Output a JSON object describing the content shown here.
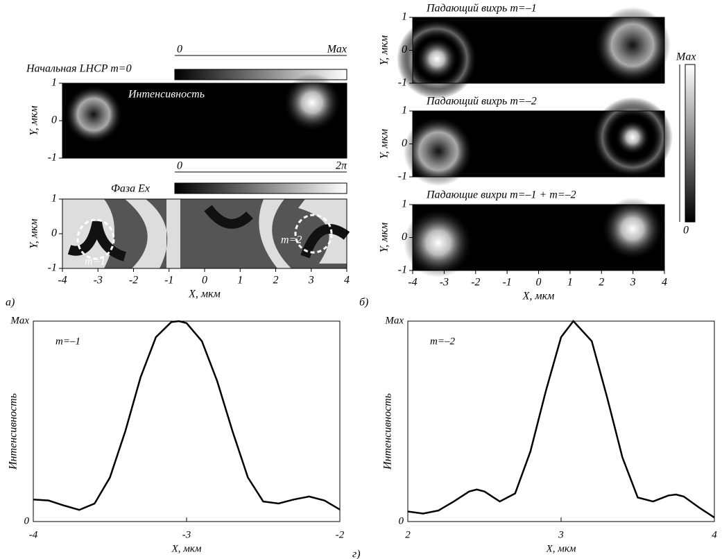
{
  "panel_a": {
    "colorbar1": {
      "min": "0",
      "max": "Max"
    },
    "title1": "Начальная LHCP m=0",
    "map1_label": "Интенсивность",
    "colorbar2": {
      "min": "0",
      "max": "2π"
    },
    "title2": "Фаза Ex",
    "vortex_labels": [
      "m=1",
      "m=2"
    ],
    "y_label": "Y, мкм",
    "y_ticks": [
      "1",
      "0",
      "-1"
    ],
    "x_ticks": [
      "-4",
      "-3",
      "-2",
      "-1",
      "0",
      "1",
      "2",
      "3",
      "4"
    ],
    "x_label": "X, мкм",
    "letter": "а)"
  },
  "panel_b": {
    "titles": [
      "Падающий вихрь m=–1",
      "Падающий вихрь m=–2",
      "Падающие вихри m=–1 + m=–2"
    ],
    "y_label": "Y, мкм",
    "y_ticks": [
      "1",
      "0",
      "-1"
    ],
    "x_ticks": [
      "-4",
      "-3",
      "-2",
      "-1",
      "0",
      "1",
      "2",
      "3",
      "4"
    ],
    "x_label": "X, мкм",
    "colorbar": {
      "max": "Max",
      "min": "0"
    },
    "letter": "б)"
  },
  "panel_g_letter": "г)",
  "chart_data": [
    {
      "type": "line",
      "annotation": "m=–1",
      "y_label": "Интенсивность",
      "x_label": "X, мкм",
      "color": "#000000",
      "x": [
        -4.0,
        -3.9,
        -3.8,
        -3.7,
        -3.6,
        -3.5,
        -3.4,
        -3.3,
        -3.2,
        -3.1,
        -3.05,
        -3.0,
        -2.9,
        -2.8,
        -2.7,
        -2.6,
        -2.5,
        -2.4,
        -2.3,
        -2.2,
        -2.1,
        -2.0
      ],
      "values": [
        0.11,
        0.105,
        0.08,
        0.058,
        0.09,
        0.22,
        0.45,
        0.72,
        0.92,
        0.995,
        1.0,
        0.99,
        0.9,
        0.7,
        0.45,
        0.22,
        0.1,
        0.09,
        0.11,
        0.125,
        0.105,
        0.06
      ],
      "xlim": [
        -4,
        -2
      ],
      "xticks": [
        -4,
        -3,
        -2
      ],
      "ylim": [
        0,
        1
      ],
      "yticks": [
        0,
        {
          "value": 1,
          "label": "Max"
        }
      ]
    },
    {
      "type": "line",
      "annotation": "m=–2",
      "y_label": "Интенсивность",
      "x_label": "X, мкм",
      "color": "#000000",
      "x": [
        2.0,
        2.1,
        2.2,
        2.3,
        2.4,
        2.45,
        2.5,
        2.6,
        2.7,
        2.8,
        2.9,
        3.0,
        3.08,
        3.2,
        3.3,
        3.4,
        3.5,
        3.6,
        3.7,
        3.75,
        3.8,
        3.9,
        4.0
      ],
      "values": [
        0.05,
        0.04,
        0.055,
        0.1,
        0.15,
        0.16,
        0.15,
        0.1,
        0.14,
        0.35,
        0.65,
        0.92,
        1.0,
        0.9,
        0.62,
        0.32,
        0.12,
        0.1,
        0.13,
        0.135,
        0.125,
        0.07,
        0.02
      ],
      "xlim": [
        2,
        4
      ],
      "xticks": [
        2,
        3,
        4
      ],
      "ylim": [
        0,
        1
      ],
      "yticks": [
        0,
        {
          "value": 1,
          "label": "Max"
        }
      ]
    }
  ]
}
